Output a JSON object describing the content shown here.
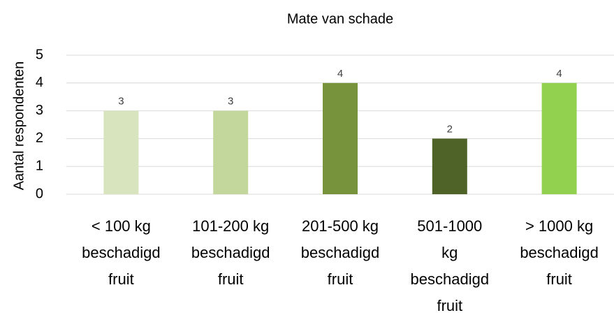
{
  "chart_data": {
    "type": "bar",
    "title": "Mate van schade",
    "y_label": "Aantal respondenten",
    "categories": [
      "< 100 kg beschadigd fruit",
      "101-200 kg beschadigd fruit",
      "201-500 kg beschadigd fruit",
      "501-1000 kg beschadigd fruit",
      "> 1000 kg beschadigd fruit"
    ],
    "values": [
      3,
      3,
      4,
      2,
      4
    ],
    "colors": [
      "#d7e4bd",
      "#c3d69b",
      "#77933c",
      "#4f6228",
      "#92d050"
    ],
    "ylim": [
      0,
      5
    ],
    "yticks": [
      0,
      1,
      2,
      3,
      4,
      5
    ],
    "grid": true
  }
}
